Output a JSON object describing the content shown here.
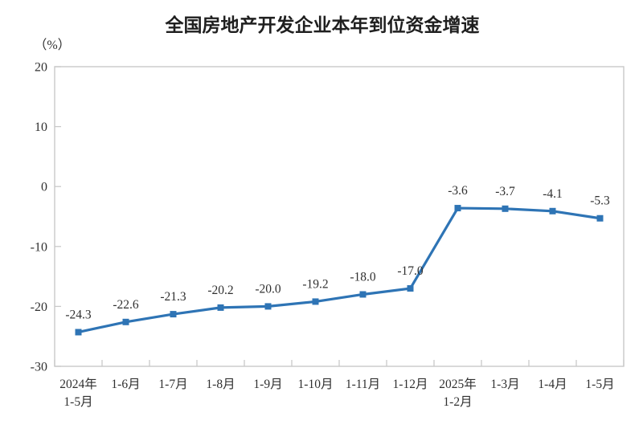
{
  "page": {
    "background": "#ffffff"
  },
  "chart_data": {
    "type": "line",
    "title": "全国房地产开发企业本年到位资金增速",
    "unit_label": "（%）",
    "categories": [
      "2024年1-5月",
      "1-6月",
      "1-7月",
      "1-8月",
      "1-9月",
      "1-10月",
      "1-11月",
      "1-12月",
      "2025年1-2月",
      "1-3月",
      "1-4月",
      "1-5月"
    ],
    "category_labels": [
      [
        "2024年",
        "1-5月"
      ],
      [
        "1-6月"
      ],
      [
        "1-7月"
      ],
      [
        "1-8月"
      ],
      [
        "1-9月"
      ],
      [
        "1-10月"
      ],
      [
        "1-11月"
      ],
      [
        "1-12月"
      ],
      [
        "2025年",
        "1-2月"
      ],
      [
        "1-3月"
      ],
      [
        "1-4月"
      ],
      [
        "1-5月"
      ]
    ],
    "values": [
      -24.3,
      -22.6,
      -21.3,
      -20.2,
      -20.0,
      -19.2,
      -18.0,
      -17.0,
      -3.6,
      -3.7,
      -4.1,
      -5.3
    ],
    "data_labels": [
      "-24.3",
      "-22.6",
      "-21.3",
      "-20.2",
      "-20.0",
      "-19.2",
      "-18.0",
      "-17.0",
      "-3.6",
      "-3.7",
      "-4.1",
      "-5.3"
    ],
    "ylabel": "",
    "xlabel": "",
    "ylim": [
      -30,
      20
    ],
    "y_ticks": [
      20,
      10,
      0,
      -10,
      -20,
      -30
    ],
    "grid": false,
    "legend": "none",
    "line_color": "#2E74B5",
    "marker": "square",
    "axis_color": "#c9c9c9",
    "text_color": "#303030"
  }
}
